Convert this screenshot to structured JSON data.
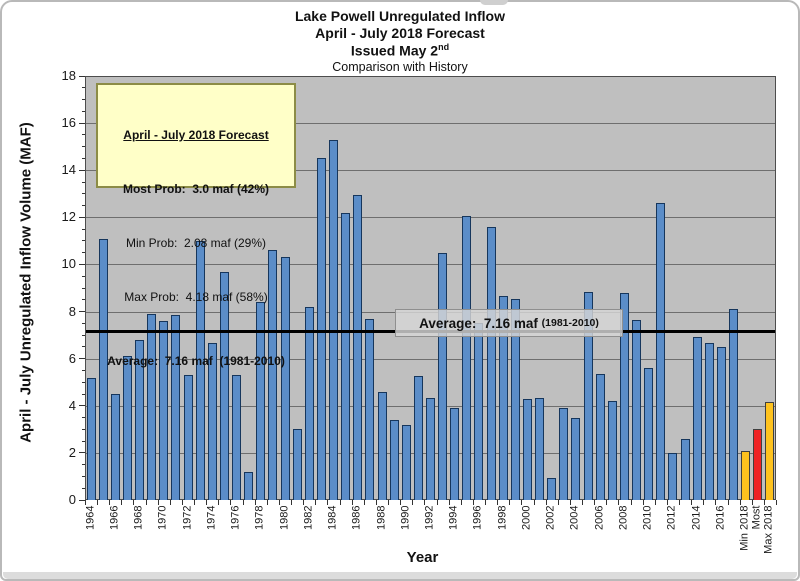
{
  "header": {
    "title_line1": "Lake Powell Unregulated Inflow",
    "title_line2": "April - July 2018 Forecast",
    "title_line3_main": "Issued May 2",
    "title_line3_sup": "nd",
    "title_line4": "Comparison with History"
  },
  "forecast_box": {
    "heading": "April - July 2018 Forecast",
    "most_prob": "Most Prob:  3.0 maf (42%)",
    "min_prob": "Min Prob:  2.08 maf (29%)",
    "max_prob": "Max Prob:  4.18 maf (58%)",
    "average": "Average:  7.16 maf  (1981-2010)"
  },
  "average_annotation": {
    "label_main": "Average:  7.16 maf ",
    "label_paren": "(1981-2010)",
    "value": 7.16
  },
  "axes": {
    "x_title": "Year",
    "y_title": "April - July Unregulated Inflow Volume (MAF)"
  },
  "chart_data": {
    "type": "bar",
    "title": "Lake Powell Unregulated Inflow / April - July 2018 Forecast / Issued May 2nd / Comparison with History",
    "xlabel": "Year",
    "ylabel": "April - July Unregulated Inflow Volume (MAF)",
    "ylim": [
      0,
      18
    ],
    "y_major_tick_step": 2,
    "y_minor_tick_step": 0.5,
    "grid": true,
    "legend_position": "none",
    "average_line": {
      "value": 7.16,
      "label": "Average: 7.16 maf (1981-2010)"
    },
    "categories": [
      "1964",
      "1965",
      "1966",
      "1967",
      "1968",
      "1969",
      "1970",
      "1971",
      "1972",
      "1973",
      "1974",
      "1975",
      "1976",
      "1977",
      "1978",
      "1979",
      "1980",
      "1981",
      "1982",
      "1983",
      "1984",
      "1985",
      "1986",
      "1987",
      "1988",
      "1989",
      "1990",
      "1991",
      "1992",
      "1993",
      "1994",
      "1995",
      "1996",
      "1997",
      "1998",
      "1999",
      "2000",
      "2001",
      "2002",
      "2003",
      "2004",
      "2005",
      "2006",
      "2007",
      "2008",
      "2009",
      "2010",
      "2011",
      "2012",
      "2013",
      "2014",
      "2015",
      "2016",
      "2017",
      "Min 2018",
      "Most",
      "Max 2018"
    ],
    "values": [
      5.2,
      11.1,
      4.5,
      6.1,
      6.8,
      7.9,
      7.6,
      7.85,
      5.3,
      11.0,
      6.65,
      9.7,
      5.3,
      1.2,
      8.4,
      10.6,
      10.3,
      3.0,
      8.2,
      14.5,
      15.3,
      12.2,
      12.95,
      7.7,
      4.6,
      3.4,
      3.2,
      5.25,
      4.35,
      10.5,
      3.9,
      12.05,
      7.5,
      11.6,
      8.65,
      8.55,
      4.3,
      4.35,
      0.95,
      3.9,
      3.5,
      8.85,
      5.35,
      4.2,
      8.8,
      7.65,
      5.6,
      12.6,
      2.0,
      2.6,
      6.9,
      6.65,
      6.5,
      8.1,
      2.08,
      3.0,
      4.18
    ],
    "bar_color_keys": [
      "history",
      "history",
      "history",
      "history",
      "history",
      "history",
      "history",
      "history",
      "history",
      "history",
      "history",
      "history",
      "history",
      "history",
      "history",
      "history",
      "history",
      "history",
      "history",
      "history",
      "history",
      "history",
      "history",
      "history",
      "history",
      "history",
      "history",
      "history",
      "history",
      "history",
      "history",
      "history",
      "history",
      "history",
      "history",
      "history",
      "history",
      "history",
      "history",
      "history",
      "history",
      "history",
      "history",
      "history",
      "history",
      "history",
      "history",
      "history",
      "history",
      "history",
      "history",
      "history",
      "history",
      "history",
      "min_max",
      "most",
      "min_max"
    ],
    "labeled_categories": [
      "1964",
      "1966",
      "1968",
      "1970",
      "1972",
      "1974",
      "1976",
      "1978",
      "1980",
      "1982",
      "1984",
      "1986",
      "1988",
      "1990",
      "1992",
      "1994",
      "1996",
      "1998",
      "2000",
      "2002",
      "2004",
      "2006",
      "2008",
      "2010",
      "2012",
      "2014",
      "2016",
      "Min 2018",
      "Most",
      "Max 2018"
    ]
  },
  "theme": {
    "history_fill": "#5b8dc8",
    "history_border": "#16365c",
    "min_max_fill": "#fec21e",
    "most_fill": "#ee2224",
    "forecast_border": "#3f3f3f",
    "plot_bg": "#bfbfbf",
    "grid_color": "#6e6e6e",
    "avg_line_color": "#000000",
    "info_box_bg": "#ffffc8"
  }
}
